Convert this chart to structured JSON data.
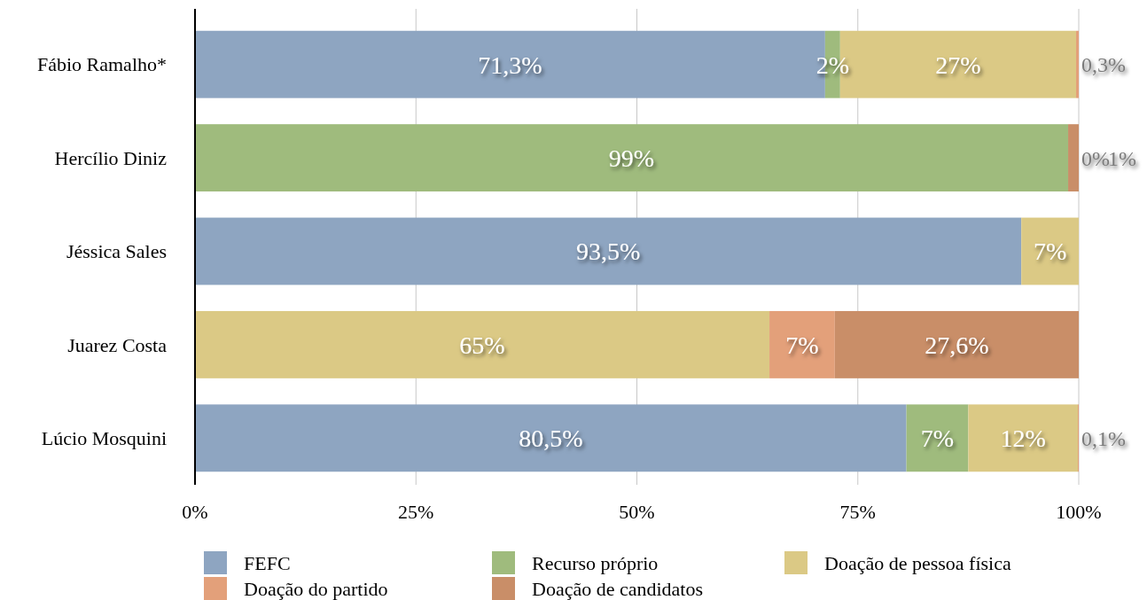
{
  "chart_data": {
    "type": "bar",
    "orientation": "horizontal",
    "stacked": true,
    "categories": [
      "Fábio Ramalho*",
      "Hercílio Diniz",
      "Jéssica Sales",
      "Juarez Costa",
      "Lúcio Mosquini"
    ],
    "series": [
      {
        "name": "FEFC",
        "color": "#8ea5c1",
        "values": [
          71.3,
          null,
          93.5,
          null,
          80.5
        ],
        "value_labels": [
          "71,3%",
          null,
          "93,5%",
          null,
          "80,5%"
        ]
      },
      {
        "name": "Recurso próprio",
        "color": "#9fbb7d",
        "values": [
          1.7,
          98.8,
          null,
          null,
          7
        ],
        "value_labels": [
          "2%",
          "99%",
          null,
          null,
          "7%"
        ]
      },
      {
        "name": "Doação de pessoa física",
        "color": "#dbc985",
        "values": [
          26.7,
          null,
          6.5,
          65,
          12.4
        ],
        "value_labels": [
          "27%",
          null,
          "7%",
          "65%",
          "12%"
        ]
      },
      {
        "name": "Doação do partido",
        "color": "#e3a07a",
        "values": [
          0.3,
          0,
          null,
          7.4,
          0.1
        ],
        "value_labels": [
          "0,3%",
          "0%",
          null,
          "7%",
          "0,1%"
        ]
      },
      {
        "name": "Doação de candidatos",
        "color": "#c98e68",
        "values": [
          null,
          1.2,
          null,
          27.6,
          null
        ],
        "value_labels": [
          null,
          "1%",
          null,
          "27,6%",
          null
        ]
      }
    ],
    "xlim": [
      0,
      100
    ],
    "xticks": [
      {
        "value": 0,
        "label": "0%"
      },
      {
        "value": 25,
        "label": "25%"
      },
      {
        "value": 50,
        "label": "50%"
      },
      {
        "value": 75,
        "label": "75%"
      },
      {
        "value": 100,
        "label": "100%"
      }
    ],
    "grid": "x",
    "legend": "bottom"
  }
}
